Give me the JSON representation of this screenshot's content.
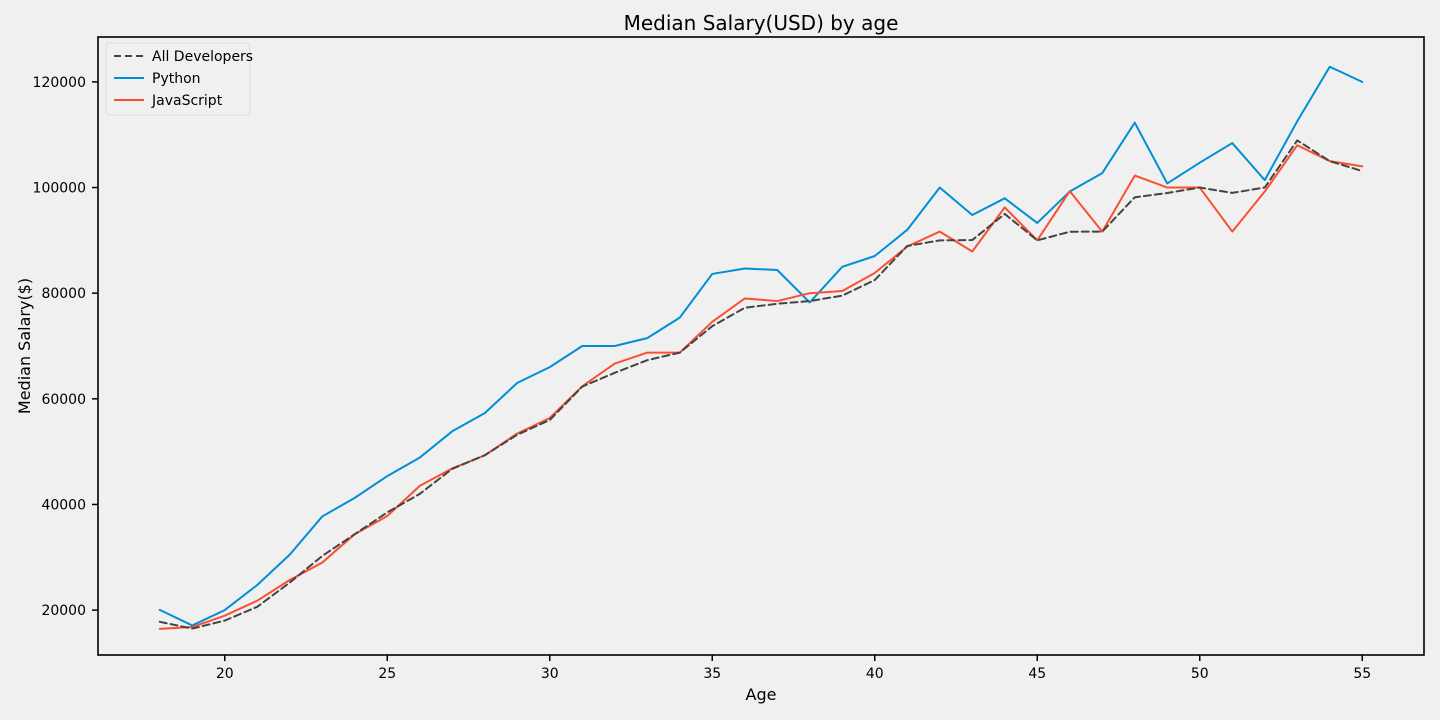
{
  "chart_data": {
    "type": "line",
    "title": "Median Salary(USD) by age",
    "xlabel": "Age",
    "ylabel": "Median Salary($)",
    "xlim": [
      16.1,
      56.9
    ],
    "ylim": [
      11500,
      128500
    ],
    "xticks": [
      20,
      25,
      30,
      35,
      40,
      45,
      50,
      55
    ],
    "yticks": [
      20000,
      40000,
      60000,
      80000,
      100000,
      120000
    ],
    "grid": false,
    "legend_position": "top-left",
    "x": [
      18,
      19,
      20,
      21,
      22,
      23,
      24,
      25,
      26,
      27,
      28,
      29,
      30,
      31,
      32,
      33,
      34,
      35,
      36,
      37,
      38,
      39,
      40,
      41,
      42,
      43,
      44,
      45,
      46,
      47,
      48,
      49,
      50,
      51,
      52,
      53,
      54,
      55
    ],
    "series": [
      {
        "name": "All Developers",
        "color": "#444444",
        "dash": "dashed",
        "values": [
          17784,
          16500,
          18012,
          20628,
          25206,
          30252,
          34368,
          38496,
          42000,
          46752,
          49320,
          53200,
          56000,
          62316,
          64928,
          67317,
          68748,
          73752,
          77232,
          78000,
          78508,
          79536,
          82488,
          88935,
          90000,
          90056,
          95000,
          90000,
          91633,
          91660,
          98150,
          98964,
          100000,
          98988,
          100000,
          108923,
          105000,
          103117
        ]
      },
      {
        "name": "Python",
        "color": "#008fd5",
        "dash": "solid",
        "values": [
          20046,
          17100,
          20000,
          24744,
          30500,
          37732,
          41247,
          45372,
          48876,
          53850,
          57287,
          63016,
          65998,
          70003,
          70000,
          71496,
          75370,
          83640,
          84666,
          84392,
          78254,
          85000,
          87038,
          91991,
          100000,
          94796,
          97962,
          93302,
          99240,
          102736,
          112285,
          100771,
          104708,
          108423,
          101407,
          112542,
          122870,
          120000
        ]
      },
      {
        "name": "JavaScript",
        "color": "#fc4f30",
        "dash": "solid",
        "values": [
          16446,
          16791,
          18942,
          21780,
          25704,
          29000,
          34372,
          37810,
          43515,
          46823,
          49293,
          53437,
          56373,
          62375,
          66674,
          68745,
          68746,
          74583,
          79000,
          78508,
          79996,
          80403,
          83820,
          88833,
          91660,
          87892,
          96243,
          90000,
          99313,
          91660,
          102264,
          100000,
          100000,
          91660,
          99240,
          108000,
          105000,
          104000
        ]
      }
    ]
  }
}
